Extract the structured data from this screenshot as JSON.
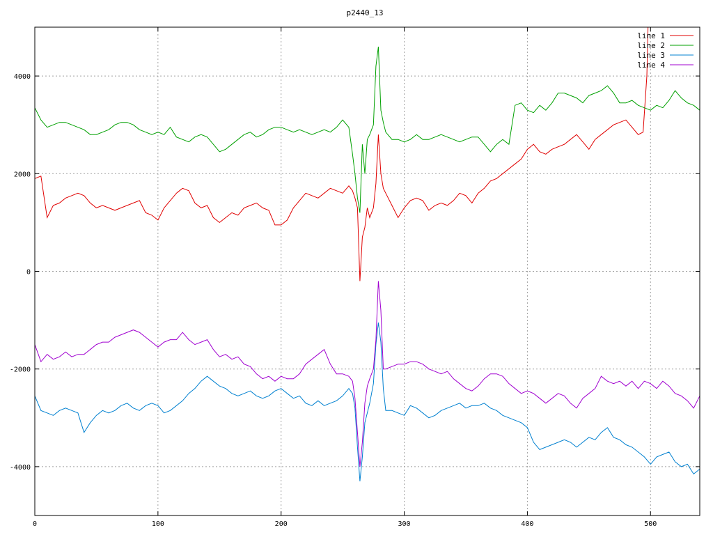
{
  "chart_data": {
    "type": "line",
    "title": "p2440_13",
    "xlabel": "",
    "ylabel": "",
    "xlim": [
      0,
      540
    ],
    "ylim": [
      -5000,
      5000
    ],
    "x_ticks": [
      0,
      100,
      200,
      300,
      400,
      500
    ],
    "y_ticks": [
      -4000,
      -2000,
      0,
      2000,
      4000
    ],
    "grid": true,
    "legend_position": "top-right",
    "series": [
      {
        "name": "line 1",
        "color": "#e00000",
        "x": [
          0,
          5,
          10,
          15,
          20,
          25,
          30,
          35,
          40,
          45,
          50,
          55,
          60,
          65,
          70,
          75,
          80,
          85,
          90,
          95,
          100,
          105,
          110,
          115,
          120,
          125,
          130,
          135,
          140,
          145,
          150,
          155,
          160,
          165,
          170,
          175,
          180,
          185,
          190,
          195,
          200,
          205,
          210,
          215,
          220,
          225,
          230,
          235,
          240,
          245,
          250,
          255,
          258,
          260,
          262,
          264,
          266,
          268,
          270,
          272,
          275,
          277,
          279,
          281,
          283,
          285,
          290,
          295,
          300,
          305,
          310,
          315,
          320,
          325,
          330,
          335,
          340,
          345,
          350,
          355,
          360,
          365,
          370,
          375,
          380,
          385,
          390,
          395,
          400,
          405,
          410,
          415,
          420,
          425,
          430,
          435,
          440,
          445,
          450,
          455,
          460,
          465,
          470,
          475,
          480,
          485,
          490,
          494,
          497,
          498,
          500,
          505,
          510,
          515,
          520,
          525,
          530,
          535,
          540
        ],
        "y": [
          1900,
          1950,
          1100,
          1350,
          1400,
          1500,
          1550,
          1600,
          1550,
          1400,
          1300,
          1350,
          1300,
          1250,
          1300,
          1350,
          1400,
          1450,
          1200,
          1150,
          1050,
          1300,
          1450,
          1600,
          1700,
          1650,
          1400,
          1300,
          1350,
          1100,
          1000,
          1100,
          1200,
          1150,
          1300,
          1350,
          1400,
          1300,
          1250,
          950,
          950,
          1050,
          1300,
          1450,
          1600,
          1550,
          1500,
          1600,
          1700,
          1650,
          1600,
          1750,
          1650,
          1500,
          1300,
          -200,
          700,
          900,
          1300,
          1100,
          1300,
          1800,
          2800,
          2000,
          1700,
          1600,
          1350,
          1100,
          1300,
          1450,
          1500,
          1450,
          1250,
          1350,
          1400,
          1350,
          1450,
          1600,
          1550,
          1400,
          1600,
          1700,
          1850,
          1900,
          2000,
          2100,
          2200,
          2300,
          2500,
          2600,
          2450,
          2400,
          2500,
          2550,
          2600,
          2700,
          2800,
          2650,
          2500,
          2700,
          2800,
          2900,
          3000,
          3050,
          3100,
          2950,
          2800,
          2850,
          4000,
          5000,
          5000,
          5000,
          5000,
          5000,
          5000,
          5000,
          5000,
          5000,
          5000
        ]
      },
      {
        "name": "line 2",
        "color": "#00a000",
        "x": [
          0,
          5,
          10,
          15,
          20,
          25,
          30,
          35,
          40,
          45,
          50,
          55,
          60,
          65,
          70,
          75,
          80,
          85,
          90,
          95,
          100,
          105,
          110,
          115,
          120,
          125,
          130,
          135,
          140,
          145,
          150,
          155,
          160,
          165,
          170,
          175,
          180,
          185,
          190,
          195,
          200,
          205,
          210,
          215,
          220,
          225,
          230,
          235,
          240,
          245,
          250,
          255,
          258,
          260,
          262,
          264,
          266,
          268,
          270,
          272,
          275,
          277,
          279,
          281,
          283,
          285,
          290,
          295,
          300,
          305,
          310,
          315,
          320,
          325,
          330,
          335,
          340,
          345,
          350,
          355,
          360,
          365,
          370,
          375,
          380,
          385,
          390,
          395,
          400,
          405,
          410,
          415,
          420,
          425,
          430,
          435,
          440,
          445,
          450,
          455,
          460,
          465,
          470,
          475,
          480,
          485,
          490,
          495,
          500,
          505,
          510,
          515,
          520,
          525,
          530,
          535,
          540
        ],
        "y": [
          3350,
          3100,
          2950,
          3000,
          3050,
          3050,
          3000,
          2950,
          2900,
          2800,
          2800,
          2850,
          2900,
          3000,
          3050,
          3050,
          3000,
          2900,
          2850,
          2800,
          2850,
          2800,
          2950,
          2750,
          2700,
          2650,
          2750,
          2800,
          2750,
          2600,
          2450,
          2500,
          2600,
          2700,
          2800,
          2850,
          2750,
          2800,
          2900,
          2950,
          2950,
          2900,
          2850,
          2900,
          2850,
          2800,
          2850,
          2900,
          2850,
          2950,
          3100,
          2950,
          2400,
          2000,
          1500,
          1200,
          2600,
          2000,
          2700,
          2800,
          3000,
          4200,
          4600,
          3300,
          3050,
          2850,
          2700,
          2700,
          2650,
          2700,
          2800,
          2700,
          2700,
          2750,
          2800,
          2750,
          2700,
          2650,
          2700,
          2750,
          2750,
          2600,
          2450,
          2600,
          2700,
          2600,
          3400,
          3450,
          3300,
          3250,
          3400,
          3300,
          3450,
          3650,
          3650,
          3600,
          3550,
          3450,
          3600,
          3650,
          3700,
          3800,
          3650,
          3450,
          3450,
          3500,
          3400,
          3350,
          3300,
          3400,
          3350,
          3500,
          3700,
          3550,
          3450,
          3400,
          3300
        ]
      },
      {
        "name": "line 3",
        "color": "#0080d0",
        "x": [
          0,
          5,
          10,
          15,
          20,
          25,
          30,
          35,
          40,
          45,
          50,
          55,
          60,
          65,
          70,
          75,
          80,
          85,
          90,
          95,
          100,
          105,
          110,
          115,
          120,
          125,
          130,
          135,
          140,
          145,
          150,
          155,
          160,
          165,
          170,
          175,
          180,
          185,
          190,
          195,
          200,
          205,
          210,
          215,
          220,
          225,
          230,
          235,
          240,
          245,
          250,
          255,
          258,
          260,
          262,
          264,
          266,
          268,
          270,
          272,
          275,
          277,
          279,
          281,
          283,
          285,
          290,
          295,
          300,
          305,
          310,
          315,
          320,
          325,
          330,
          335,
          340,
          345,
          350,
          355,
          360,
          365,
          370,
          375,
          380,
          385,
          390,
          395,
          400,
          405,
          410,
          415,
          420,
          425,
          430,
          435,
          440,
          445,
          450,
          455,
          460,
          465,
          470,
          475,
          480,
          485,
          490,
          495,
          500,
          505,
          510,
          515,
          520,
          525,
          530,
          535,
          540
        ],
        "y": [
          -2550,
          -2850,
          -2900,
          -2950,
          -2850,
          -2800,
          -2850,
          -2900,
          -3300,
          -3100,
          -2950,
          -2850,
          -2900,
          -2850,
          -2750,
          -2700,
          -2800,
          -2850,
          -2750,
          -2700,
          -2750,
          -2900,
          -2850,
          -2750,
          -2650,
          -2500,
          -2400,
          -2250,
          -2150,
          -2250,
          -2350,
          -2400,
          -2500,
          -2550,
          -2500,
          -2450,
          -2550,
          -2600,
          -2550,
          -2450,
          -2400,
          -2500,
          -2600,
          -2550,
          -2700,
          -2750,
          -2650,
          -2750,
          -2700,
          -2650,
          -2550,
          -2400,
          -2500,
          -2800,
          -3600,
          -4300,
          -3800,
          -3100,
          -2900,
          -2700,
          -2300,
          -1500,
          -1050,
          -1450,
          -2400,
          -2850,
          -2850,
          -2900,
          -2950,
          -2750,
          -2800,
          -2900,
          -3000,
          -2950,
          -2850,
          -2800,
          -2750,
          -2700,
          -2800,
          -2750,
          -2750,
          -2700,
          -2800,
          -2850,
          -2950,
          -3000,
          -3050,
          -3100,
          -3200,
          -3500,
          -3650,
          -3600,
          -3550,
          -3500,
          -3450,
          -3500,
          -3600,
          -3500,
          -3400,
          -3450,
          -3300,
          -3200,
          -3400,
          -3450,
          -3550,
          -3600,
          -3700,
          -3800,
          -3950,
          -3800,
          -3750,
          -3700,
          -3900,
          -4000,
          -3950,
          -4150,
          -4050
        ]
      },
      {
        "name": "line 4",
        "color": "#a000d0",
        "x": [
          0,
          5,
          10,
          15,
          20,
          25,
          30,
          35,
          40,
          45,
          50,
          55,
          60,
          65,
          70,
          75,
          80,
          85,
          90,
          95,
          100,
          105,
          110,
          115,
          120,
          125,
          130,
          135,
          140,
          145,
          150,
          155,
          160,
          165,
          170,
          175,
          180,
          185,
          190,
          195,
          200,
          205,
          210,
          215,
          220,
          225,
          230,
          235,
          240,
          245,
          250,
          255,
          258,
          260,
          262,
          264,
          266,
          268,
          270,
          272,
          275,
          277,
          279,
          281,
          283,
          285,
          290,
          295,
          300,
          305,
          310,
          315,
          320,
          325,
          330,
          335,
          340,
          345,
          350,
          355,
          360,
          365,
          370,
          375,
          380,
          385,
          390,
          395,
          400,
          405,
          410,
          415,
          420,
          425,
          430,
          435,
          440,
          445,
          450,
          455,
          460,
          465,
          470,
          475,
          480,
          485,
          490,
          495,
          500,
          505,
          510,
          515,
          520,
          525,
          530,
          535,
          540
        ],
        "y": [
          -1500,
          -1850,
          -1700,
          -1800,
          -1750,
          -1650,
          -1750,
          -1700,
          -1700,
          -1600,
          -1500,
          -1450,
          -1450,
          -1350,
          -1300,
          -1250,
          -1200,
          -1250,
          -1350,
          -1450,
          -1550,
          -1450,
          -1400,
          -1400,
          -1250,
          -1400,
          -1500,
          -1450,
          -1400,
          -1600,
          -1750,
          -1700,
          -1800,
          -1750,
          -1900,
          -1950,
          -2100,
          -2200,
          -2150,
          -2250,
          -2150,
          -2200,
          -2200,
          -2100,
          -1900,
          -1800,
          -1700,
          -1600,
          -1900,
          -2100,
          -2100,
          -2150,
          -2250,
          -2600,
          -3300,
          -4000,
          -3500,
          -2700,
          -2350,
          -2200,
          -2000,
          -1400,
          -200,
          -800,
          -2000,
          -2000,
          -1950,
          -1900,
          -1900,
          -1850,
          -1850,
          -1900,
          -2000,
          -2050,
          -2100,
          -2050,
          -2200,
          -2300,
          -2400,
          -2450,
          -2350,
          -2200,
          -2100,
          -2100,
          -2150,
          -2300,
          -2400,
          -2500,
          -2450,
          -2500,
          -2600,
          -2700,
          -2600,
          -2500,
          -2550,
          -2700,
          -2800,
          -2600,
          -2500,
          -2400,
          -2150,
          -2250,
          -2300,
          -2250,
          -2350,
          -2250,
          -2400,
          -2250,
          -2300,
          -2400,
          -2250,
          -2350,
          -2500,
          -2550,
          -2650,
          -2800,
          -2550
        ]
      }
    ]
  }
}
